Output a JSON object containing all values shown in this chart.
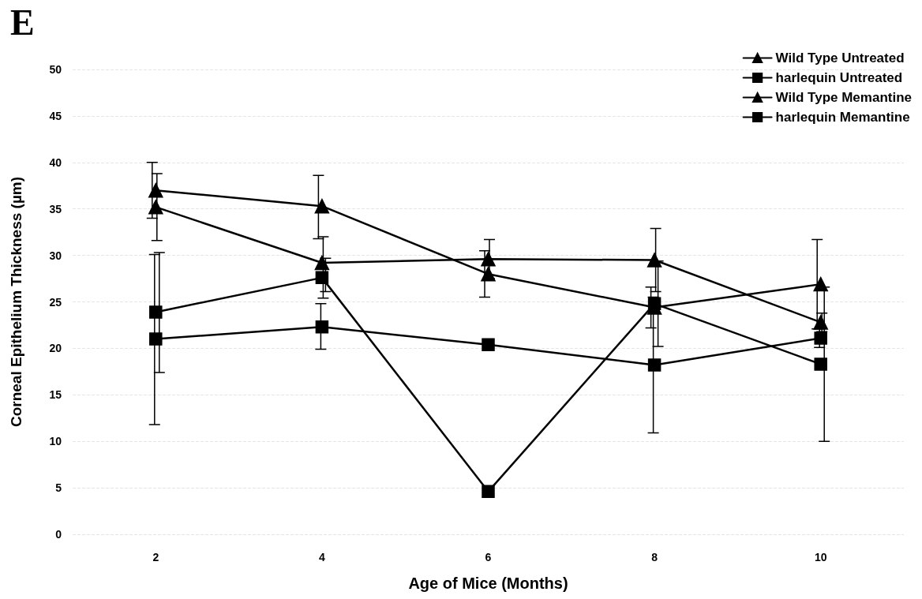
{
  "chart_data": {
    "type": "line",
    "title": "E",
    "xlabel": "Age of Mice (Months)",
    "ylabel": "Corneal Epithelium Thickness (µm)",
    "x": [
      2,
      4,
      6,
      8,
      10
    ],
    "series": [
      {
        "name": "Wild Type Untreated",
        "color": "#000000",
        "marker": "triangle",
        "values": [
          37.0,
          35.3,
          28.0,
          24.4,
          26.9
        ],
        "errors": [
          [
            34.0,
            40.0
          ],
          [
            31.8,
            38.6
          ],
          2.5,
          2.2,
          4.8
        ]
      },
      {
        "name": "harlequin Untreated",
        "color": "#000000",
        "marker": "square",
        "values": [
          21.0,
          22.3,
          20.4,
          18.2,
          21.1
        ],
        "errors": [
          [
            11.8,
            30.1
          ],
          [
            19.9,
            24.8
          ],
          null,
          7.3,
          1.0
        ]
      },
      {
        "name": "Wild Type Memantine",
        "color": "#000000",
        "marker": "triangle",
        "values": [
          35.2,
          29.2,
          29.6,
          29.5,
          22.8
        ],
        "errors": [
          [
            31.6,
            38.8
          ],
          [
            25.4,
            32.0
          ],
          2.1,
          3.4,
          1.0
        ]
      },
      {
        "name": "harlequin Memantine",
        "color": "#000000",
        "marker": "square",
        "values": [
          23.9,
          27.6,
          4.6,
          24.8,
          18.3
        ],
        "errors": [
          [
            17.4,
            30.3
          ],
          [
            26.1,
            29.7
          ],
          null,
          4.6,
          8.3
        ]
      }
    ],
    "xlim": [
      1,
      11
    ],
    "grid": "y",
    "xticks": [
      2,
      4,
      6,
      8,
      10
    ],
    "ylim": [
      0,
      50
    ],
    "yticks": [
      0,
      5,
      10,
      15,
      20,
      25,
      30,
      35,
      40,
      45,
      50
    ],
    "legend": "top right",
    "line_style": "solid"
  }
}
